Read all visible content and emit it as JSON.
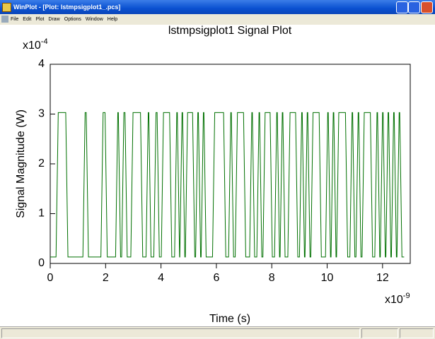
{
  "window": {
    "title": "WinPlot - [Plot: lstmpsigplot1_.pcs]",
    "menu": [
      "File",
      "Edit",
      "Plot",
      "Draw",
      "Options",
      "Window",
      "Help"
    ]
  },
  "chart_data": {
    "type": "line",
    "title": "lstmpsigplot1  Signal Plot",
    "x_label": "Time (s)",
    "y_label": "Signal Magnitude (W)",
    "x_multiplier": {
      "base": "x10",
      "exponent": "-9"
    },
    "y_multiplier": {
      "base": "x10",
      "exponent": "-4"
    },
    "color": "#007000",
    "xlim": [
      0,
      13
    ],
    "ylim": [
      0,
      4
    ],
    "xticks": [
      0,
      2,
      4,
      6,
      8,
      10,
      12
    ],
    "yticks": [
      0,
      1,
      2,
      3,
      4
    ],
    "grid": false,
    "x": [
      0,
      0.21,
      0.29,
      0.56,
      0.64,
      1.18,
      1.26,
      1.3,
      1.38,
      1.83,
      1.91,
      1.98,
      2.06,
      2.36,
      2.44,
      2.46,
      2.54,
      2.58,
      2.66,
      2.7,
      2.78,
      2.91,
      2.99,
      3.26,
      3.34,
      3.46,
      3.54,
      3.56,
      3.64,
      3.74,
      3.82,
      3.86,
      3.94,
      4.01,
      4.09,
      4.31,
      4.39,
      4.49,
      4.57,
      4.59,
      4.67,
      4.68,
      4.76,
      4.78,
      4.86,
      4.88,
      4.96,
      5.14,
      5.22,
      5.25,
      5.33,
      5.35,
      5.43,
      5.45,
      5.53,
      5.55,
      5.63,
      5.86,
      5.94,
      6.26,
      6.34,
      6.44,
      6.52,
      6.54,
      6.62,
      6.68,
      6.76,
      6.98,
      7.06,
      7.2,
      7.28,
      7.3,
      7.38,
      7.46,
      7.54,
      7.56,
      7.64,
      7.68,
      7.76,
      7.94,
      8.02,
      8.1,
      8.18,
      8.2,
      8.28,
      8.3,
      8.38,
      8.4,
      8.48,
      8.58,
      8.66,
      8.86,
      8.94,
      9.0,
      9.08,
      9.1,
      9.18,
      9.2,
      9.28,
      9.3,
      9.38,
      9.41,
      9.49,
      9.71,
      9.79,
      9.94,
      10.02,
      10.04,
      10.12,
      10.14,
      10.22,
      10.24,
      10.32,
      10.34,
      10.42,
      10.66,
      10.74,
      10.82,
      10.9,
      10.92,
      11.0,
      11.04,
      11.12,
      11.14,
      11.22,
      11.26,
      11.34,
      11.56,
      11.64,
      11.72,
      11.8,
      11.82,
      11.9,
      11.92,
      12.0,
      12.02,
      12.1,
      12.12,
      12.2,
      12.22,
      12.3,
      12.32,
      12.4,
      12.42,
      12.5,
      12.52,
      12.6,
      12.62,
      12.7,
      12.78
    ],
    "values": [
      0.13,
      0.13,
      3.03,
      3.03,
      0.13,
      0.13,
      3.03,
      3.03,
      0.13,
      0.13,
      3.03,
      3.03,
      0.13,
      0.13,
      3.03,
      3.03,
      0.13,
      0.13,
      3.03,
      3.03,
      0.13,
      0.13,
      3.03,
      3.03,
      0.13,
      0.13,
      3.03,
      3.03,
      0.13,
      0.13,
      3.03,
      3.03,
      0.13,
      0.13,
      3.03,
      3.03,
      0.13,
      0.13,
      3.03,
      3.03,
      0.13,
      0.13,
      3.03,
      3.03,
      0.13,
      0.13,
      3.03,
      3.03,
      0.13,
      0.13,
      3.03,
      3.03,
      0.13,
      0.13,
      3.03,
      3.03,
      0.13,
      0.13,
      3.03,
      3.03,
      0.13,
      0.13,
      3.03,
      3.03,
      0.13,
      0.13,
      3.03,
      3.03,
      0.13,
      0.13,
      3.03,
      3.03,
      0.13,
      0.13,
      3.03,
      3.03,
      0.13,
      0.13,
      3.03,
      3.03,
      0.13,
      0.13,
      3.03,
      3.03,
      0.13,
      0.13,
      3.03,
      3.03,
      0.13,
      0.13,
      3.03,
      3.03,
      0.13,
      0.13,
      3.03,
      3.03,
      0.13,
      0.13,
      3.03,
      3.03,
      0.13,
      0.13,
      3.03,
      3.03,
      0.13,
      0.13,
      3.03,
      3.03,
      0.13,
      0.13,
      3.03,
      3.03,
      0.13,
      0.13,
      3.03,
      3.03,
      0.13,
      0.13,
      3.03,
      3.03,
      0.13,
      0.13,
      3.03,
      3.03,
      0.13,
      0.13,
      3.03,
      3.03,
      0.13,
      0.13,
      3.03,
      3.03,
      0.13,
      0.13,
      3.03,
      3.03,
      0.13,
      0.13,
      3.03,
      3.03,
      0.13,
      0.13,
      3.03,
      3.03,
      0.13,
      0.13,
      3.03,
      3.03,
      0.13,
      0.13
    ]
  }
}
